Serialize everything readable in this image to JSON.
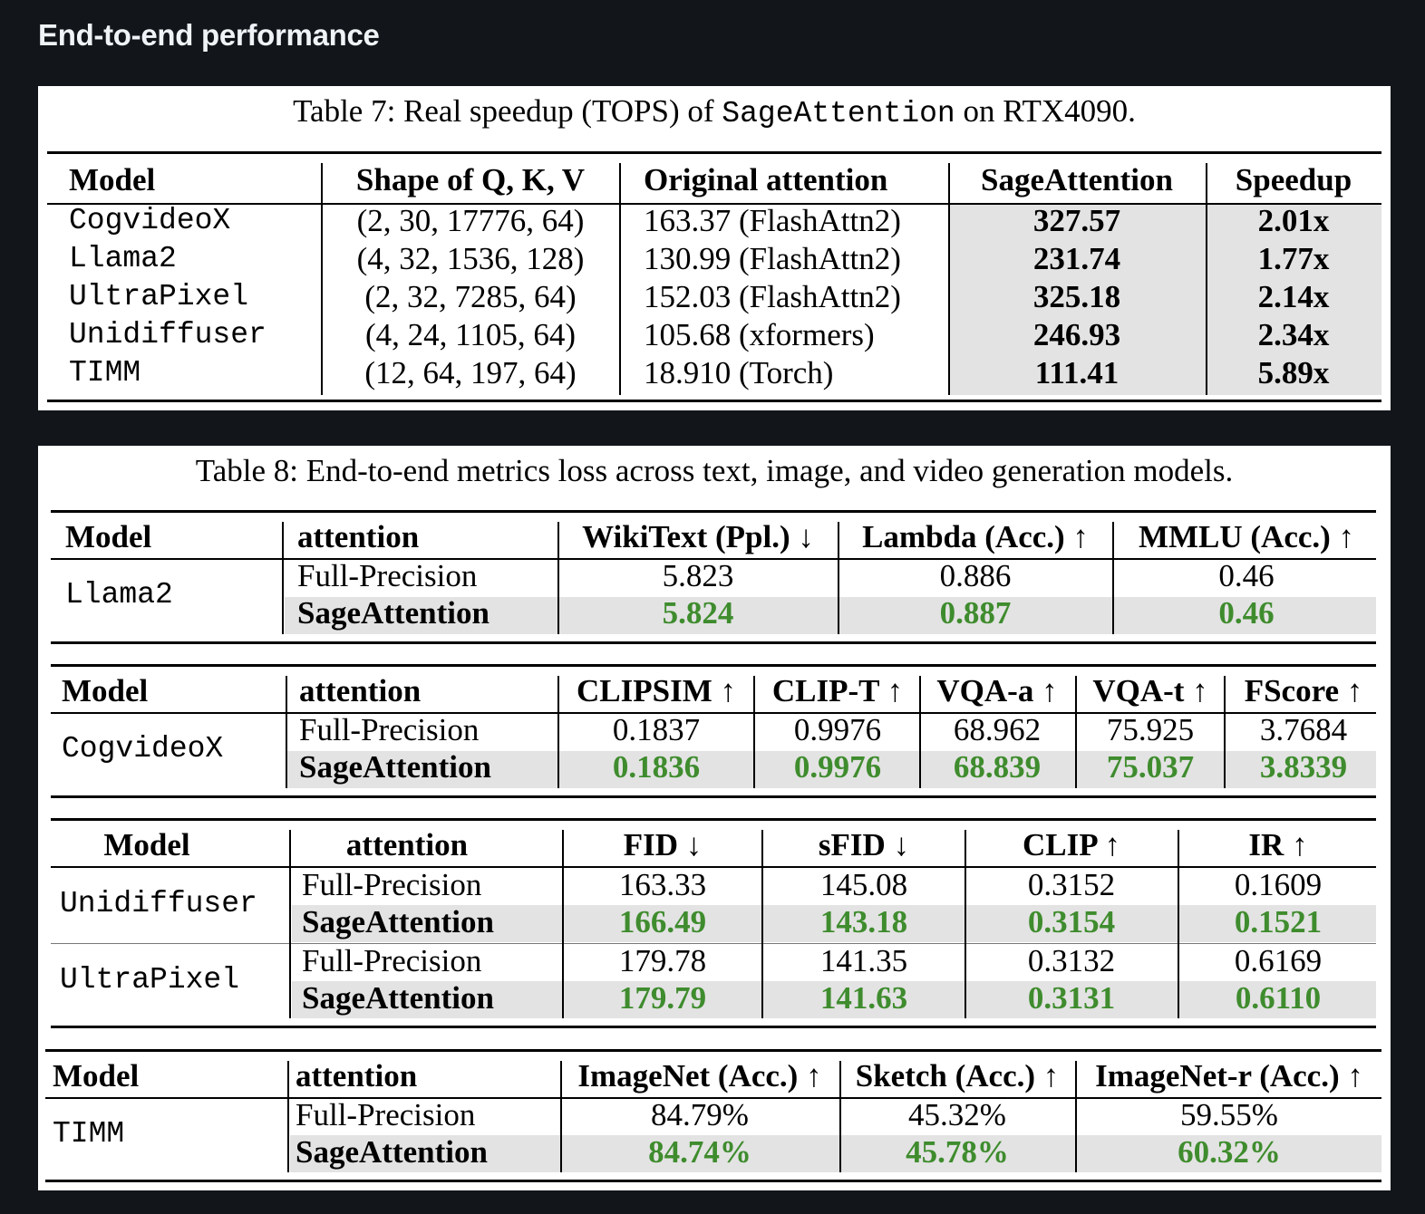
{
  "page": {
    "heading": "End-to-end performance"
  },
  "colors": {
    "background": "#12161b",
    "panel": "#ffffff",
    "shade": "#e3e3e3",
    "improved_value_green": "#3f8c2e"
  },
  "table7": {
    "caption_prefix": "Table 7: Real speedup (TOPS) of ",
    "caption_code": "SageAttention",
    "caption_suffix": " on RTX4090.",
    "headers": [
      "Model",
      "Shape of Q, K, V",
      "Original attention",
      "SageAttention",
      "Speedup"
    ],
    "rows": [
      {
        "model": "CogvideoX",
        "shape": "(2, 30, 17776, 64)",
        "original": "163.37 (FlashAttn2)",
        "sage": "327.57",
        "speedup": "2.01x"
      },
      {
        "model": "Llama2",
        "shape": "(4, 32, 1536, 128)",
        "original": "130.99 (FlashAttn2)",
        "sage": "231.74",
        "speedup": "1.77x"
      },
      {
        "model": "UltraPixel",
        "shape": "(2, 32, 7285, 64)",
        "original": "152.03 (FlashAttn2)",
        "sage": "325.18",
        "speedup": "2.14x"
      },
      {
        "model": "Unidiffuser",
        "shape": "(4, 24, 1105, 64)",
        "original": "105.68 (xformers)",
        "sage": "246.93",
        "speedup": "2.34x"
      },
      {
        "model": "TIMM",
        "shape": "(12, 64, 197, 64)",
        "original": "18.910 (Torch)",
        "sage": "111.41",
        "speedup": "5.89x"
      }
    ]
  },
  "table8": {
    "caption": "Table 8: End-to-end metrics loss across text, image, and video generation models.",
    "labels": {
      "full": "Full-Precision",
      "sage": "SageAttention"
    },
    "llama": {
      "headers": [
        "Model",
        "attention",
        "WikiText (Ppl.) ↓",
        "Lambda (Acc.) ↑",
        "MMLU (Acc.) ↑"
      ],
      "model": "Llama2",
      "full": [
        "5.823",
        "0.886",
        "0.46"
      ],
      "sage": [
        "5.824",
        "0.887",
        "0.46"
      ]
    },
    "cogvideo": {
      "headers": [
        "Model",
        "attention",
        "CLIPSIM ↑",
        "CLIP-T ↑",
        "VQA-a ↑",
        "VQA-t ↑",
        "FScore ↑"
      ],
      "model": "CogvideoX",
      "full": [
        "0.1837",
        "0.9976",
        "68.962",
        "75.925",
        "3.7684"
      ],
      "sage": [
        "0.1836",
        "0.9976",
        "68.839",
        "75.037",
        "3.8339"
      ]
    },
    "image": {
      "headers": [
        "Model",
        "attention",
        "FID ↓",
        "sFID ↓",
        "CLIP ↑",
        "IR ↑"
      ],
      "groups": [
        {
          "model": "Unidiffuser",
          "full": [
            "163.33",
            "145.08",
            "0.3152",
            "0.1609"
          ],
          "sage": [
            "166.49",
            "143.18",
            "0.3154",
            "0.1521"
          ]
        },
        {
          "model": "UltraPixel",
          "full": [
            "179.78",
            "141.35",
            "0.3132",
            "0.6169"
          ],
          "sage": [
            "179.79",
            "141.63",
            "0.3131",
            "0.6110"
          ]
        }
      ]
    },
    "timm": {
      "headers": [
        "Model",
        "attention",
        "ImageNet (Acc.) ↑",
        "Sketch (Acc.) ↑",
        "ImageNet-r (Acc.) ↑"
      ],
      "model": "TIMM",
      "full": [
        "84.79%",
        "45.32%",
        "59.55%"
      ],
      "sage": [
        "84.74%",
        "45.78%",
        "60.32%"
      ]
    }
  }
}
